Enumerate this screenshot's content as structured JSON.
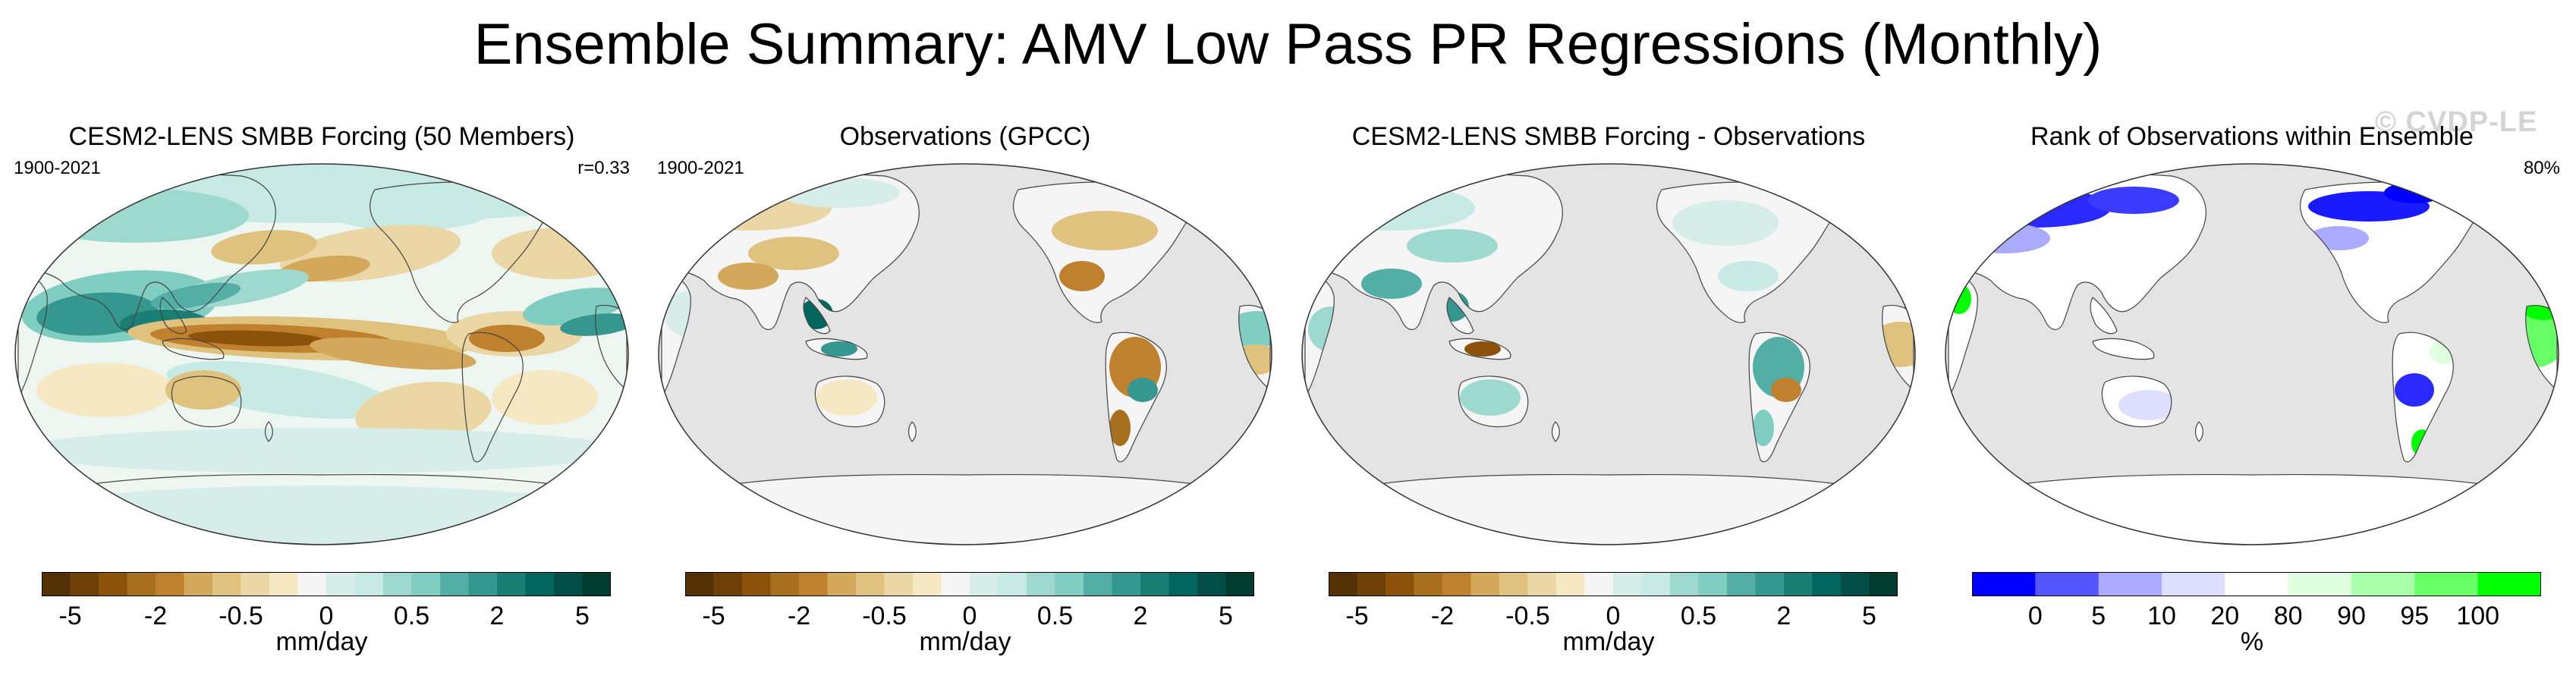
{
  "title": "Ensemble Summary: AMV Low Pass PR Regressions (Monthly)",
  "watermark": "© CVDP-LE",
  "colors": {
    "land_gray": "#e4e4e4",
    "brbg": [
      "#543005",
      "#6f3f0a",
      "#8c510a",
      "#a8701e",
      "#bf812d",
      "#d3a85a",
      "#dfc27d",
      "#ebd7a5",
      "#f6e8c3",
      "#f5f5f5",
      "#d6ede9",
      "#c7eae5",
      "#9ed9cf",
      "#80cdc1",
      "#53aea6",
      "#35978f",
      "#1a7e75",
      "#01665e",
      "#024e46",
      "#003c30"
    ],
    "rank": [
      "#0000ff",
      "#5555ff",
      "#aaaaff",
      "#dedeff",
      "#ffffff",
      "#dfffdf",
      "#aaffaa",
      "#66ff66",
      "#00ff00"
    ]
  },
  "panels": [
    {
      "title": "CESM2-LENS SMBB Forcing (50 Members)",
      "left_text": "1900-2021",
      "right_text": "r=0.33",
      "map_type": "model",
      "colorbar": {
        "ticks": [
          "-5",
          "-2",
          "-0.5",
          "0",
          "0.5",
          "2",
          "5"
        ],
        "unit": "mm/day",
        "palette": "brbg"
      }
    },
    {
      "title": "Observations (GPCC)",
      "left_text": "1900-2021",
      "right_text": "",
      "map_type": "obs",
      "colorbar": {
        "ticks": [
          "-5",
          "-2",
          "-0.5",
          "0",
          "0.5",
          "2",
          "5"
        ],
        "unit": "mm/day",
        "palette": "brbg"
      }
    },
    {
      "title": "CESM2-LENS SMBB Forcing - Observations",
      "left_text": "",
      "right_text": "",
      "map_type": "diff",
      "colorbar": {
        "ticks": [
          "-5",
          "-2",
          "-0.5",
          "0",
          "0.5",
          "2",
          "5"
        ],
        "unit": "mm/day",
        "palette": "brbg"
      }
    },
    {
      "title": "Rank of Observations within Ensemble",
      "left_text": "",
      "right_text": "80%",
      "map_type": "rank",
      "colorbar": {
        "ticks": [
          "0",
          "5",
          "10",
          "20",
          "80",
          "90",
          "95",
          "100"
        ],
        "unit": "%",
        "palette": "rank"
      }
    }
  ]
}
